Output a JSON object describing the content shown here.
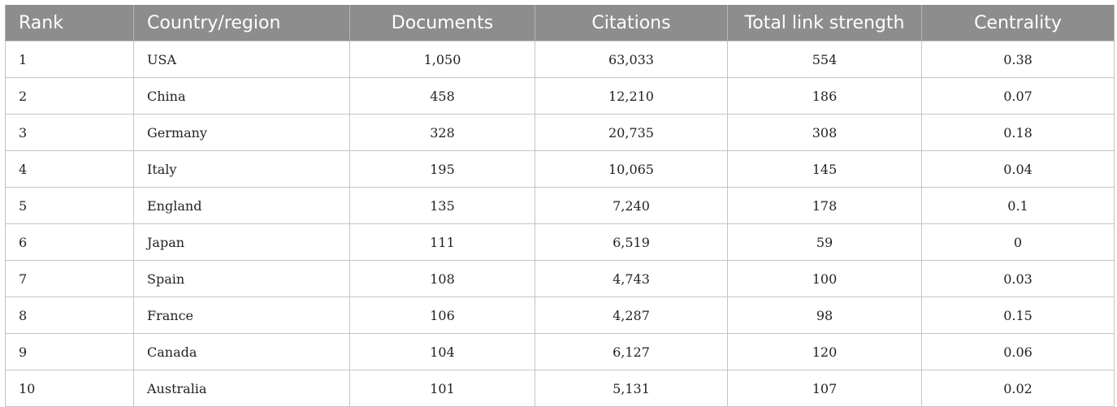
{
  "table": {
    "headers": [
      "Rank",
      "Country/region",
      "Documents",
      "Citations",
      "Total link strength",
      "Centrality"
    ],
    "rows": [
      [
        "1",
        "USA",
        "1,050",
        "63,033",
        "554",
        "0.38"
      ],
      [
        "2",
        "China",
        "458",
        "12,210",
        "186",
        "0.07"
      ],
      [
        "3",
        "Germany",
        "328",
        "20,735",
        "308",
        "0.18"
      ],
      [
        "4",
        "Italy",
        "195",
        "10,065",
        "145",
        "0.04"
      ],
      [
        "5",
        "England",
        "135",
        "7,240",
        "178",
        "0.1"
      ],
      [
        "6",
        "Japan",
        "111",
        "6,519",
        "59",
        "0"
      ],
      [
        "7",
        "Spain",
        "108",
        "4,743",
        "100",
        "0.03"
      ],
      [
        "8",
        "France",
        "106",
        "4,287",
        "98",
        "0.15"
      ],
      [
        "9",
        "Canada",
        "104",
        "6,127",
        "120",
        "0.06"
      ],
      [
        "10",
        "Australia",
        "101",
        "5,131",
        "107",
        "0.02"
      ]
    ]
  },
  "colors": {
    "header_bg": "#8d8d8d",
    "header_text": "#ffffff",
    "grid": "#c4c4c4"
  }
}
